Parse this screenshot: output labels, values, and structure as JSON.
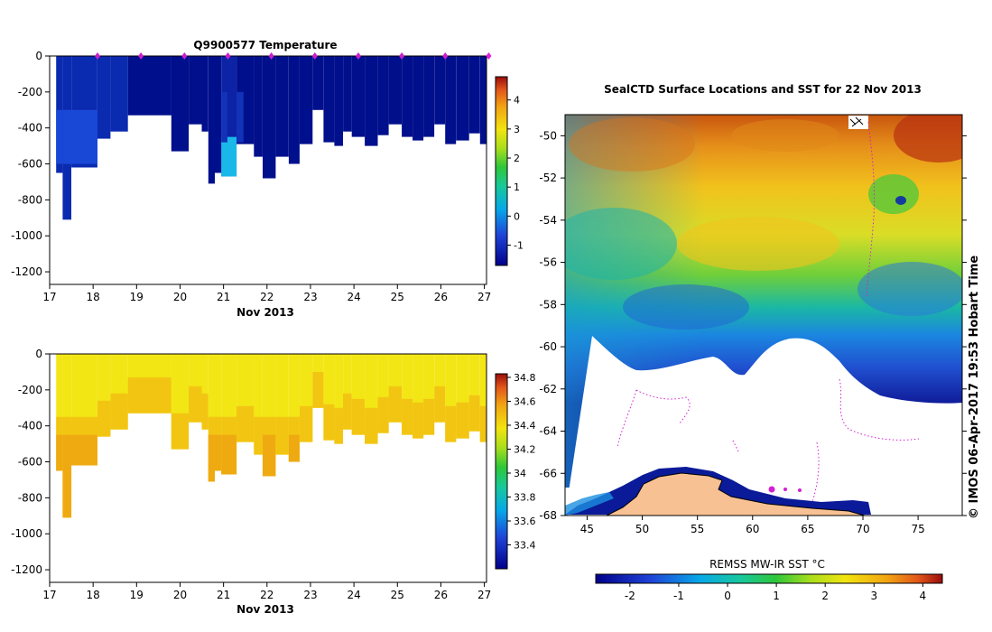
{
  "colors": {
    "deep_blue": "#000e86",
    "yellow": "#f2e410",
    "orange": "#ee9b0f",
    "red": "#a1150d",
    "land": "#f7c193",
    "track": "#d21fd2"
  },
  "chart_data": [
    {
      "id": "temperature_section",
      "type": "heatmap",
      "title": "Q9900577  Temperature",
      "xlabel": "Nov 2013",
      "ylabel": "",
      "x_ticks": [
        "17",
        "18",
        "19",
        "20",
        "21",
        "22",
        "23",
        "24",
        "25",
        "26",
        "27"
      ],
      "xlim": [
        17,
        27.05
      ],
      "y_ticks": [
        "0",
        "-200",
        "-400",
        "-600",
        "-800",
        "-1000",
        "-1200"
      ],
      "ylim": [
        -1270,
        0
      ],
      "colorbar": {
        "ticks": [
          "4",
          "3",
          "2",
          "1",
          "0",
          "-1"
        ],
        "range": [
          -1.7,
          4.8
        ]
      },
      "profile_markers_day": [
        18,
        19,
        20,
        21,
        22,
        23,
        24,
        25,
        26,
        27
      ],
      "profiles": [
        {
          "day": 17.25,
          "depth": -650
        },
        {
          "day": 17.4,
          "depth": -910
        },
        {
          "day": 17.6,
          "depth": -620
        },
        {
          "day": 17.9,
          "depth": -620
        },
        {
          "day": 18.2,
          "depth": -460
        },
        {
          "day": 18.5,
          "depth": -420
        },
        {
          "day": 18.9,
          "depth": -330
        },
        {
          "day": 19.9,
          "depth": -530
        },
        {
          "day": 20.3,
          "depth": -380
        },
        {
          "day": 20.6,
          "depth": -420
        },
        {
          "day": 20.75,
          "depth": -710
        },
        {
          "day": 20.9,
          "depth": -650
        },
        {
          "day": 21.05,
          "depth": -670
        },
        {
          "day": 21.4,
          "depth": -490
        },
        {
          "day": 21.8,
          "depth": -560
        },
        {
          "day": 22.0,
          "depth": -680
        },
        {
          "day": 22.3,
          "depth": -560
        },
        {
          "day": 22.6,
          "depth": -600
        },
        {
          "day": 22.85,
          "depth": -490
        },
        {
          "day": 23.15,
          "depth": -300
        },
        {
          "day": 23.4,
          "depth": -480
        },
        {
          "day": 23.65,
          "depth": -500
        },
        {
          "day": 23.85,
          "depth": -420
        },
        {
          "day": 24.05,
          "depth": -450
        },
        {
          "day": 24.35,
          "depth": -500
        },
        {
          "day": 24.65,
          "depth": -440
        },
        {
          "day": 24.9,
          "depth": -380
        },
        {
          "day": 25.2,
          "depth": -450
        },
        {
          "day": 25.45,
          "depth": -470
        },
        {
          "day": 25.7,
          "depth": -450
        },
        {
          "day": 25.95,
          "depth": -380
        },
        {
          "day": 26.2,
          "depth": -490
        },
        {
          "day": 26.45,
          "depth": -470
        },
        {
          "day": 26.75,
          "depth": -430
        },
        {
          "day": 27.0,
          "depth": -490
        }
      ]
    },
    {
      "id": "salinity_section",
      "type": "heatmap",
      "title": "",
      "xlabel": "Nov 2013",
      "ylabel": "",
      "x_ticks": [
        "17",
        "18",
        "19",
        "20",
        "21",
        "22",
        "23",
        "24",
        "25",
        "26",
        "27"
      ],
      "xlim": [
        17,
        27.05
      ],
      "y_ticks": [
        "0",
        "-200",
        "-400",
        "-600",
        "-800",
        "-1000",
        "-1200"
      ],
      "ylim": [
        -1270,
        0
      ],
      "colorbar": {
        "ticks": [
          "34.8",
          "34.6",
          "34.4",
          "34.2",
          "34",
          "33.8",
          "33.6",
          "33.4"
        ],
        "range": [
          33.2,
          34.83
        ]
      }
    },
    {
      "id": "sst_map",
      "type": "heatmap",
      "title": "SealCTD Surface Locations and SST for 22 Nov 2013",
      "xlabel": "",
      "ylabel": "",
      "x_ticks": [
        "45",
        "50",
        "55",
        "60",
        "65",
        "70",
        "75"
      ],
      "xlim": [
        43,
        79
      ],
      "y_ticks": [
        "-50",
        "-52",
        "-54",
        "-56",
        "-58",
        "-60",
        "-62",
        "-64",
        "-66",
        "-68"
      ],
      "ylim": [
        -68,
        -49
      ],
      "colorbar": {
        "label": "REMSS MW-IR SST °C",
        "ticks": [
          "-2",
          "-1",
          "0",
          "1",
          "2",
          "3",
          "4"
        ],
        "range": [
          -2.7,
          4.4
        ]
      },
      "side_label": "© IMOS 06-Apr-2017 19:53 Hobart Time"
    }
  ]
}
